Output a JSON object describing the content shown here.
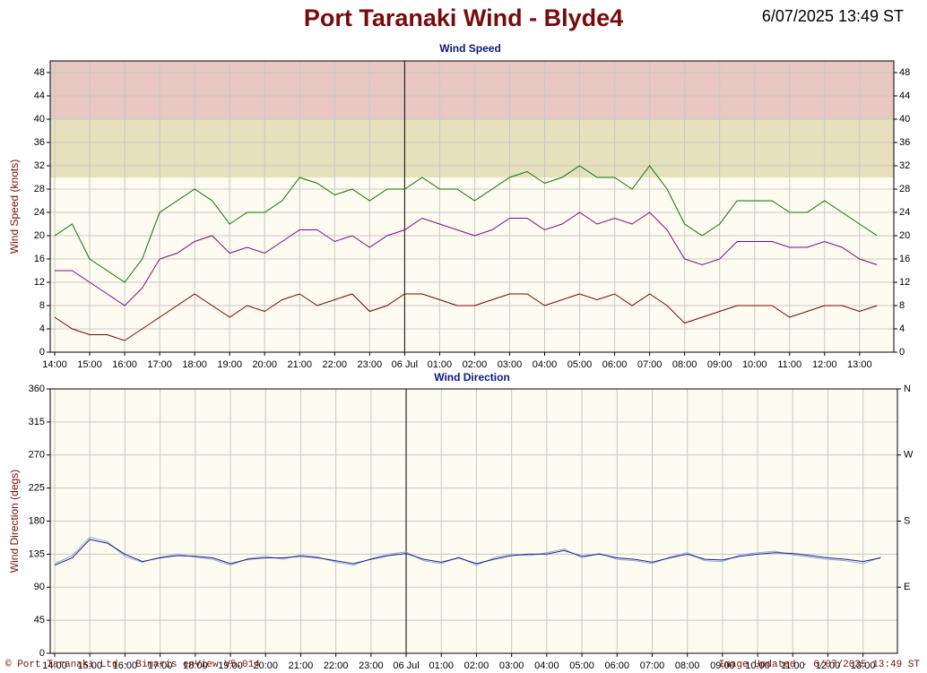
{
  "title": "Port Taranaki Wind - Blyde4",
  "timestamp": "6/07/2025 13:49 ST",
  "footer_left": "© Port Taranaki Ltd - Bimaris enView V5.014",
  "footer_right": "Image Updated - 6/07/2025 13:49 ST",
  "chart_data": [
    {
      "type": "line",
      "title": "Wind Speed",
      "y_label": "Wind Speed (knots)",
      "categories": [
        "14:00",
        null,
        "15:00",
        null,
        "16:00",
        null,
        "17:00",
        null,
        "18:00",
        null,
        "19:00",
        null,
        "20:00",
        null,
        "21:00",
        null,
        "22:00",
        null,
        "23:00",
        null,
        "06 Jul",
        null,
        "01:00",
        null,
        "02:00",
        null,
        "03:00",
        null,
        "04:00",
        null,
        "05:00",
        null,
        "06:00",
        null,
        "07:00",
        null,
        "08:00",
        null,
        "09:00",
        null,
        "10:00",
        null,
        "11:00",
        null,
        "12:00",
        null,
        "13:00",
        null
      ],
      "series": [
        {
          "color": "#007700",
          "values": [
            20,
            22,
            16,
            14,
            12,
            16,
            24,
            26,
            28,
            26,
            22,
            24,
            24,
            26,
            30,
            29,
            27,
            28,
            26,
            28,
            28,
            30,
            28,
            28,
            26,
            28,
            30,
            31,
            29,
            30,
            32,
            30,
            30,
            28,
            32,
            28,
            22,
            20,
            22,
            26,
            26,
            26,
            24,
            24,
            26,
            24,
            22,
            20
          ]
        },
        {
          "color": "#880088",
          "values": [
            14,
            14,
            12,
            10,
            8,
            11,
            16,
            17,
            19,
            20,
            17,
            18,
            17,
            19,
            21,
            21,
            19,
            20,
            18,
            20,
            21,
            23,
            22,
            21,
            20,
            21,
            23,
            23,
            21,
            22,
            24,
            22,
            23,
            22,
            24,
            21,
            16,
            15,
            16,
            19,
            19,
            19,
            18,
            18,
            19,
            18,
            16,
            15
          ]
        },
        {
          "color": "#7a0000",
          "values": [
            6,
            4,
            3,
            3,
            2,
            4,
            6,
            8,
            10,
            8,
            6,
            8,
            7,
            9,
            10,
            8,
            9,
            10,
            7,
            8,
            10,
            10,
            9,
            8,
            8,
            9,
            10,
            10,
            8,
            9,
            10,
            9,
            10,
            8,
            10,
            8,
            5,
            6,
            7,
            8,
            8,
            8,
            6,
            7,
            8,
            8,
            7,
            8
          ]
        }
      ],
      "bands": [
        {
          "from": 30,
          "to": 40,
          "color": "#e6e0bc"
        },
        {
          "from": 40,
          "to": 50,
          "color": "#e8c8c0"
        }
      ],
      "ylim": [
        0,
        50
      ],
      "yticks": [
        0,
        4,
        8,
        12,
        16,
        20,
        24,
        28,
        32,
        36,
        40,
        44,
        48
      ],
      "grid": true
    },
    {
      "type": "line",
      "title": "Wind Direction",
      "y_label": "Wind Direction (degs)",
      "categories": [
        "14:00",
        null,
        "15:00",
        null,
        "16:00",
        null,
        "17:00",
        null,
        "18:00",
        null,
        "19:00",
        null,
        "20:00",
        null,
        "21:00",
        null,
        "22:00",
        null,
        "23:00",
        null,
        "06 Jul",
        null,
        "01:00",
        null,
        "02:00",
        null,
        "03:00",
        null,
        "04:00",
        null,
        "05:00",
        null,
        "06:00",
        null,
        "07:00",
        null,
        "08:00",
        null,
        "09:00",
        null,
        "10:00",
        null,
        "11:00",
        null,
        "12:00",
        null,
        "13:00",
        null
      ],
      "series": [
        {
          "color": "#88aaee",
          "values": [
            122,
            133,
            158,
            152,
            132,
            124,
            131,
            135,
            131,
            128,
            120,
            129,
            132,
            128,
            134,
            131,
            124,
            120,
            129,
            135,
            138,
            126,
            122,
            131,
            120,
            130,
            135,
            133,
            137,
            142,
            130,
            136,
            128,
            126,
            122,
            131,
            137,
            126,
            125,
            134,
            137,
            139,
            134,
            131,
            128,
            126,
            122,
            131
          ]
        },
        {
          "color": "#1a237e",
          "values": [
            120,
            130,
            155,
            150,
            135,
            125,
            130,
            133,
            132,
            130,
            122,
            128,
            130,
            130,
            132,
            130,
            126,
            122,
            128,
            133,
            136,
            128,
            124,
            130,
            122,
            128,
            133,
            135,
            135,
            140,
            132,
            135,
            130,
            128,
            124,
            130,
            135,
            128,
            127,
            132,
            135,
            137,
            136,
            133,
            130,
            128,
            125,
            130
          ]
        }
      ],
      "ylim": [
        0,
        360
      ],
      "yticks": [
        0,
        45,
        90,
        135,
        180,
        225,
        270,
        315,
        360
      ],
      "y2ticks": [
        {
          "value": 90,
          "label": "E"
        },
        {
          "value": 180,
          "label": "S"
        },
        {
          "value": 270,
          "label": "W"
        },
        {
          "value": 360,
          "label": "N"
        }
      ],
      "grid": true
    }
  ]
}
